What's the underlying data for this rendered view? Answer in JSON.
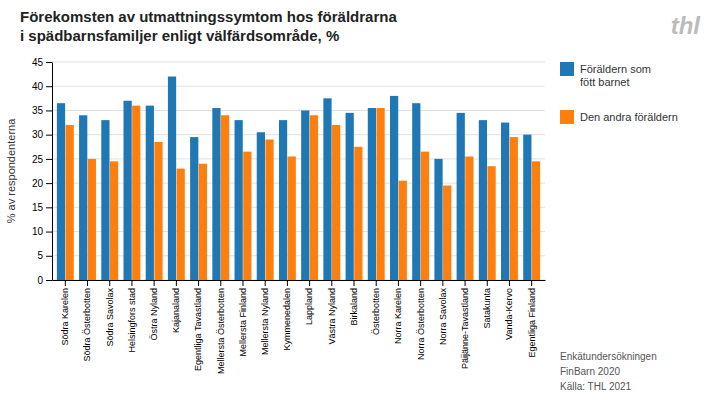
{
  "chart_data": {
    "type": "bar",
    "title": "Förekomsten av utmattningssymtom hos föräldrarna\ni spädbarnsfamiljer enligt välfärdsområde, %",
    "ylabel": "% av respondenterna",
    "categories": [
      "Södra Karelen",
      "Södra Österbotten",
      "Södra Savolax",
      "Helsingfors stad",
      "Östra Nyland",
      "Kajanaland",
      "Egentliga Tavastland",
      "Mellersta Österbotten",
      "Mellersta Finland",
      "Mellersta Nyland",
      "Kymmenedalen",
      "Lappland",
      "Västra Nyland",
      "Birkaland",
      "Österbotten",
      "Norra Karelen",
      "Norra Österbotten",
      "Norra Savolax",
      "Päijänne-Tavastland",
      "Satakunta",
      "Vanda-Kervo",
      "Egentliga Finland"
    ],
    "series": [
      {
        "name": "Föräldern som\nfött barnet",
        "values": [
          36.5,
          34.0,
          33.0,
          37.0,
          36.0,
          42.0,
          29.5,
          35.5,
          33.0,
          30.5,
          33.0,
          35.0,
          37.5,
          34.5,
          35.5,
          38.0,
          36.5,
          25.0,
          34.5,
          33.0,
          32.5,
          30.0
        ]
      },
      {
        "name": "Den andra föräldern",
        "values": [
          32.0,
          25.0,
          24.5,
          36.0,
          28.5,
          23.0,
          24.0,
          34.0,
          26.5,
          29.0,
          25.5,
          34.0,
          32.0,
          27.5,
          35.5,
          20.5,
          26.5,
          19.5,
          25.5,
          23.5,
          29.5,
          24.5
        ]
      }
    ],
    "ylim": [
      0,
      45
    ],
    "yticks": [
      0,
      5,
      10,
      15,
      20,
      25,
      30,
      35,
      40,
      45
    ],
    "grid": true,
    "legend": "right",
    "annotations": [
      "thl",
      "Enkätundersökningen",
      "FinBarn 2020",
      "Källa: THL 2021"
    ]
  }
}
